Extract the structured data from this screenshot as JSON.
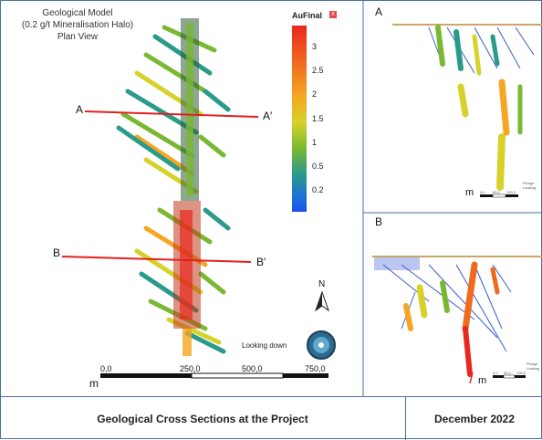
{
  "plan_view": {
    "title_line1": "Geological Model",
    "title_line2": "(0.2 g/t Mineralisation Halo)",
    "title_line3": "Plan View",
    "section_a_start": "A",
    "section_a_end": "A′",
    "section_b_start": "B",
    "section_b_end": "B′",
    "north_label": "N",
    "looking_down_label": "Looking down",
    "scale_unit": "m",
    "scale_ticks": [
      "0,0",
      "250,0",
      "500,0",
      "750,0"
    ]
  },
  "legend": {
    "title": "AuFinal",
    "close_glyph": "x",
    "ticks": [
      "3",
      "2.5",
      "2",
      "1.5",
      "1",
      "0.5",
      "0.2"
    ]
  },
  "section_a": {
    "label": "A",
    "scale_unit": "m",
    "scale_ticks": [
      "0,0",
      "50,0",
      "100,0"
    ],
    "plunge_label": "Plunge",
    "looking_label": "Looking"
  },
  "section_b": {
    "label": "B",
    "scale_unit": "m",
    "scale_ticks": [
      "0,0",
      "50,0",
      "100,0"
    ],
    "plunge_label": "Plunge",
    "looking_label": "Looking"
  },
  "footer": {
    "caption": "Geological Cross Sections at the Project",
    "date": "December 2022"
  },
  "colors": {
    "section_line": "#e32020",
    "drill_hole": "#3a5bd0",
    "frame": "#4a6fa5"
  }
}
